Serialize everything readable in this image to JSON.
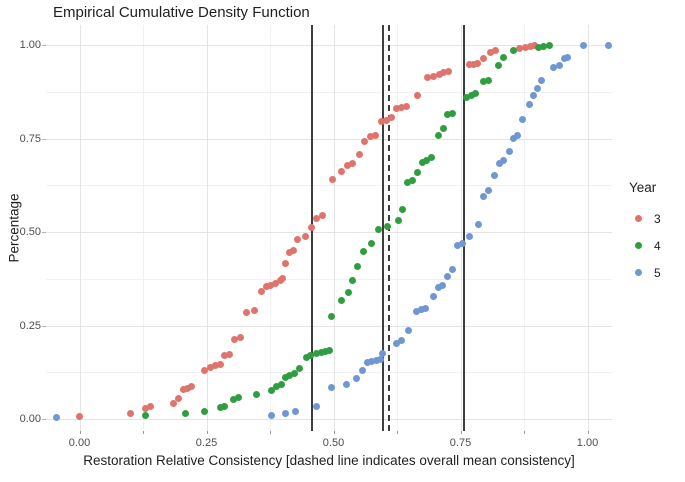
{
  "title": {
    "text": "Empirical Cumulative Density Function"
  },
  "x_axis": {
    "label": "Restoration Relative Consistency [dashed line indicates overall mean consistency]",
    "ticks": [
      {
        "label": "0.00",
        "value": 0.0
      },
      {
        "label": "0.25",
        "value": 0.25
      },
      {
        "label": "0.50",
        "value": 0.5
      },
      {
        "label": "0.75",
        "value": 0.75
      },
      {
        "label": "1.00",
        "value": 1.0
      }
    ]
  },
  "y_axis": {
    "label": "Percentage",
    "ticks": [
      {
        "label": "0.00",
        "value": 0.0
      },
      {
        "label": "0.25",
        "value": 0.25
      },
      {
        "label": "0.50",
        "value": 0.5
      },
      {
        "label": "0.75",
        "value": 0.75
      },
      {
        "label": "1.00",
        "value": 1.0
      }
    ]
  },
  "legend": {
    "title": "Year",
    "items": [
      {
        "label": "3",
        "color": "#e0736c"
      },
      {
        "label": "4",
        "color": "#2f9e41"
      },
      {
        "label": "5",
        "color": "#7197d2"
      }
    ]
  },
  "chart_data": {
    "type": "scatter",
    "title": "Empirical Cumulative Density Function",
    "xlabel": "Restoration Relative Consistency [dashed line indicates overall mean consistency]",
    "ylabel": "Percentage",
    "xlim": [
      -0.07,
      1.05
    ],
    "ylim": [
      -0.035,
      1.055
    ],
    "grid": "on",
    "legend_position": "right",
    "x_major": [
      0.0,
      0.25,
      0.5,
      0.75,
      1.0
    ],
    "x_minor": [
      0.125,
      0.375,
      0.625,
      0.875
    ],
    "y_major": [
      0.0,
      0.25,
      0.5,
      0.75,
      1.0
    ],
    "y_minor": [
      0.125,
      0.375,
      0.625,
      0.875
    ],
    "x_tick_marks": [
      0.0,
      0.125,
      0.25,
      0.375,
      0.5,
      0.625,
      0.75,
      0.875,
      1.0
    ],
    "vlines": [
      {
        "x": 0.458,
        "style": "solid",
        "meaning": "year 3 mean"
      },
      {
        "x": 0.598,
        "style": "solid",
        "meaning": "year 4 mean"
      },
      {
        "x": 0.609,
        "style": "dashed",
        "meaning": "overall mean consistency"
      },
      {
        "x": 0.757,
        "style": "solid",
        "meaning": "year 5 mean"
      }
    ],
    "series": [
      {
        "name": "3",
        "color": "#e0736c",
        "points": [
          [
            0.0,
            0.008
          ],
          [
            0.1,
            0.015
          ],
          [
            0.13,
            0.027
          ],
          [
            0.14,
            0.033
          ],
          [
            0.185,
            0.042
          ],
          [
            0.195,
            0.055
          ],
          [
            0.205,
            0.078
          ],
          [
            0.212,
            0.082
          ],
          [
            0.221,
            0.086
          ],
          [
            0.247,
            0.131
          ],
          [
            0.257,
            0.137
          ],
          [
            0.267,
            0.143
          ],
          [
            0.277,
            0.146
          ],
          [
            0.286,
            0.169
          ],
          [
            0.296,
            0.172
          ],
          [
            0.305,
            0.213
          ],
          [
            0.316,
            0.218
          ],
          [
            0.329,
            0.284
          ],
          [
            0.345,
            0.291
          ],
          [
            0.359,
            0.342
          ],
          [
            0.368,
            0.354
          ],
          [
            0.376,
            0.357
          ],
          [
            0.385,
            0.363
          ],
          [
            0.395,
            0.369
          ],
          [
            0.4,
            0.375
          ],
          [
            0.406,
            0.415
          ],
          [
            0.414,
            0.444
          ],
          [
            0.422,
            0.45
          ],
          [
            0.429,
            0.48
          ],
          [
            0.444,
            0.489
          ],
          [
            0.457,
            0.513
          ],
          [
            0.467,
            0.537
          ],
          [
            0.478,
            0.543
          ],
          [
            0.498,
            0.641
          ],
          [
            0.516,
            0.661
          ],
          [
            0.528,
            0.677
          ],
          [
            0.537,
            0.684
          ],
          [
            0.552,
            0.706
          ],
          [
            0.562,
            0.741
          ],
          [
            0.573,
            0.755
          ],
          [
            0.583,
            0.758
          ],
          [
            0.595,
            0.795
          ],
          [
            0.605,
            0.797
          ],
          [
            0.614,
            0.806
          ],
          [
            0.624,
            0.831
          ],
          [
            0.634,
            0.833
          ],
          [
            0.644,
            0.836
          ],
          [
            0.665,
            0.866
          ],
          [
            0.685,
            0.913
          ],
          [
            0.696,
            0.915
          ],
          [
            0.708,
            0.922
          ],
          [
            0.717,
            0.926
          ],
          [
            0.726,
            0.929
          ],
          [
            0.767,
            0.947
          ],
          [
            0.775,
            0.949
          ],
          [
            0.783,
            0.951
          ],
          [
            0.795,
            0.964
          ],
          [
            0.809,
            0.98
          ],
          [
            0.818,
            0.984
          ],
          [
            0.867,
            0.99
          ],
          [
            0.877,
            0.993
          ],
          [
            0.887,
            0.996
          ],
          [
            0.895,
            1.0
          ]
        ]
      },
      {
        "name": "4",
        "color": "#2f9e41",
        "points": [
          [
            0.13,
            0.009
          ],
          [
            0.208,
            0.015
          ],
          [
            0.247,
            0.02
          ],
          [
            0.277,
            0.03
          ],
          [
            0.286,
            0.033
          ],
          [
            0.303,
            0.053
          ],
          [
            0.313,
            0.057
          ],
          [
            0.349,
            0.066
          ],
          [
            0.378,
            0.075
          ],
          [
            0.388,
            0.086
          ],
          [
            0.398,
            0.093
          ],
          [
            0.406,
            0.11
          ],
          [
            0.414,
            0.116
          ],
          [
            0.424,
            0.122
          ],
          [
            0.434,
            0.134
          ],
          [
            0.446,
            0.164
          ],
          [
            0.454,
            0.169
          ],
          [
            0.467,
            0.174
          ],
          [
            0.477,
            0.177
          ],
          [
            0.485,
            0.18
          ],
          [
            0.492,
            0.183
          ],
          [
            0.497,
            0.275
          ],
          [
            0.516,
            0.316
          ],
          [
            0.529,
            0.338
          ],
          [
            0.538,
            0.37
          ],
          [
            0.547,
            0.407
          ],
          [
            0.559,
            0.447
          ],
          [
            0.575,
            0.468
          ],
          [
            0.588,
            0.507
          ],
          [
            0.606,
            0.514
          ],
          [
            0.627,
            0.532
          ],
          [
            0.636,
            0.559
          ],
          [
            0.645,
            0.632
          ],
          [
            0.656,
            0.637
          ],
          [
            0.665,
            0.659
          ],
          [
            0.675,
            0.685
          ],
          [
            0.684,
            0.691
          ],
          [
            0.693,
            0.7
          ],
          [
            0.706,
            0.759
          ],
          [
            0.716,
            0.777
          ],
          [
            0.725,
            0.813
          ],
          [
            0.734,
            0.818
          ],
          [
            0.762,
            0.859
          ],
          [
            0.772,
            0.865
          ],
          [
            0.78,
            0.871
          ],
          [
            0.795,
            0.902
          ],
          [
            0.805,
            0.906
          ],
          [
            0.824,
            0.945
          ],
          [
            0.834,
            0.966
          ],
          [
            0.854,
            0.984
          ],
          [
            0.903,
            0.993
          ],
          [
            0.914,
            0.996
          ],
          [
            0.925,
            1.0
          ]
        ]
      },
      {
        "name": "5",
        "color": "#7197d2",
        "points": [
          [
            -0.046,
            0.005
          ],
          [
            0.377,
            0.009
          ],
          [
            0.406,
            0.015
          ],
          [
            0.426,
            0.021
          ],
          [
            0.467,
            0.033
          ],
          [
            0.496,
            0.085
          ],
          [
            0.526,
            0.091
          ],
          [
            0.545,
            0.107
          ],
          [
            0.557,
            0.129
          ],
          [
            0.567,
            0.151
          ],
          [
            0.575,
            0.153
          ],
          [
            0.584,
            0.156
          ],
          [
            0.593,
            0.16
          ],
          [
            0.597,
            0.174
          ],
          [
            0.624,
            0.202
          ],
          [
            0.634,
            0.21
          ],
          [
            0.647,
            0.236
          ],
          [
            0.664,
            0.287
          ],
          [
            0.673,
            0.293
          ],
          [
            0.682,
            0.296
          ],
          [
            0.696,
            0.327
          ],
          [
            0.706,
            0.352
          ],
          [
            0.715,
            0.358
          ],
          [
            0.724,
            0.381
          ],
          [
            0.734,
            0.4
          ],
          [
            0.744,
            0.463
          ],
          [
            0.754,
            0.47
          ],
          [
            0.767,
            0.489
          ],
          [
            0.785,
            0.521
          ],
          [
            0.796,
            0.595
          ],
          [
            0.806,
            0.611
          ],
          [
            0.816,
            0.652
          ],
          [
            0.826,
            0.682
          ],
          [
            0.834,
            0.691
          ],
          [
            0.846,
            0.715
          ],
          [
            0.854,
            0.75
          ],
          [
            0.862,
            0.759
          ],
          [
            0.872,
            0.802
          ],
          [
            0.885,
            0.84
          ],
          [
            0.893,
            0.866
          ],
          [
            0.901,
            0.884
          ],
          [
            0.91,
            0.904
          ],
          [
            0.934,
            0.94
          ],
          [
            0.944,
            0.945
          ],
          [
            0.954,
            0.965
          ],
          [
            0.96,
            0.966
          ],
          [
            0.993,
            1.0
          ],
          [
            1.042,
            1.0
          ]
        ]
      }
    ]
  }
}
